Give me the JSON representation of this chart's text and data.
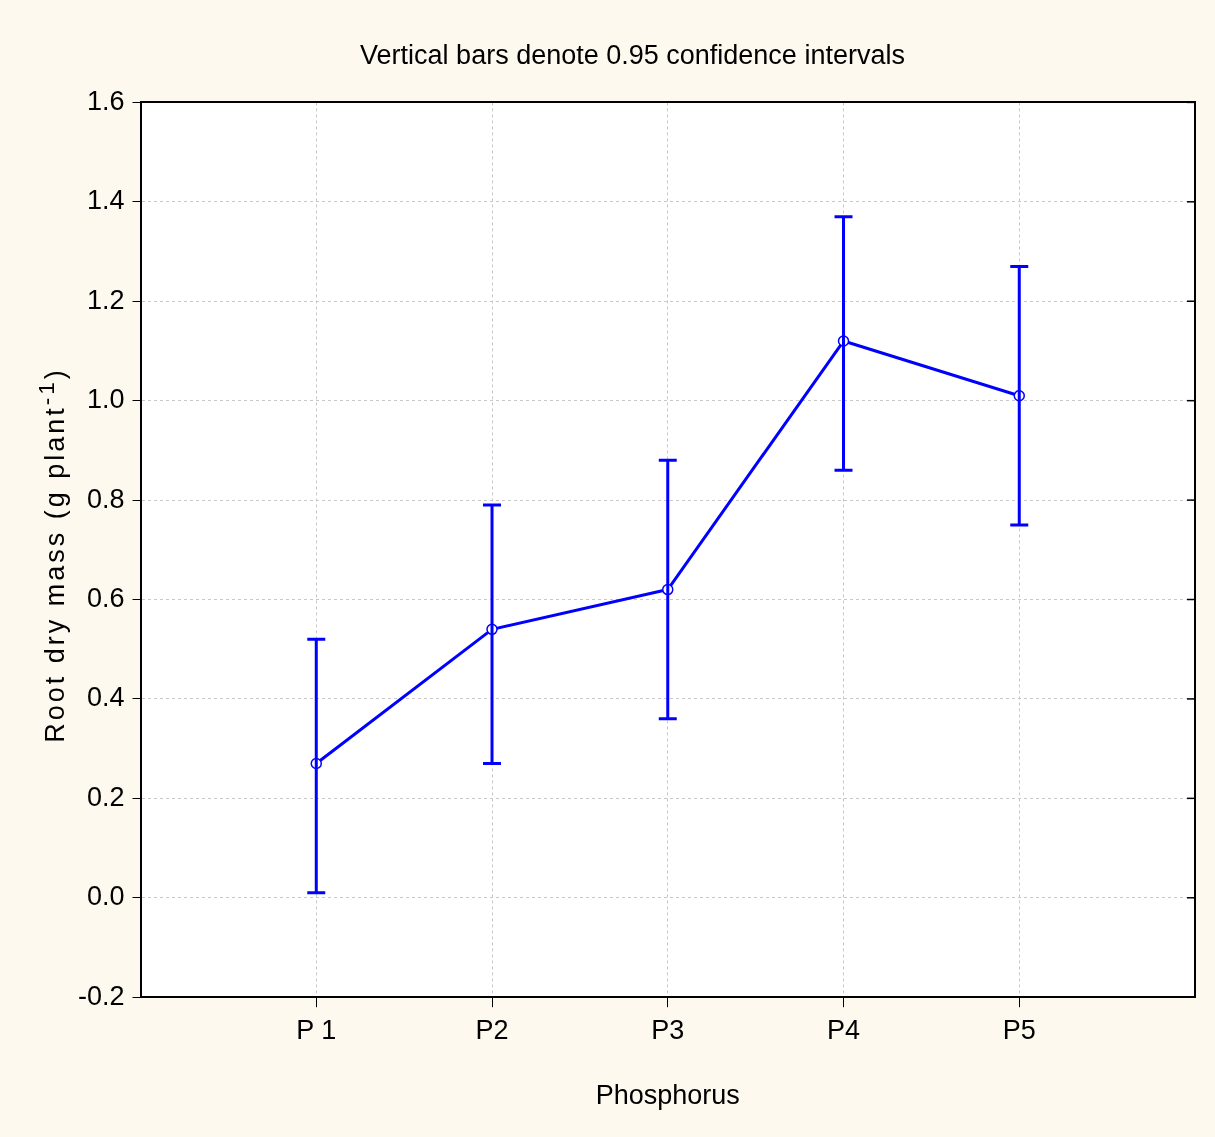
{
  "chart_data": {
    "type": "line",
    "title": "Vertical bars denote 0.95 confidence intervals",
    "xlabel": "Phosphorus",
    "ylabel": "Root dry mass (g plant$^{-1}$)",
    "categories": [
      "P 1",
      "P2",
      "P3",
      "P4",
      "P5"
    ],
    "series": [
      {
        "color": "#0000ff",
        "values": [
          0.27,
          0.54,
          0.62,
          1.12,
          1.01
        ],
        "errors": [
          [
            0.01,
            0.52
          ],
          [
            0.27,
            0.79
          ],
          [
            0.36,
            0.88
          ],
          [
            0.86,
            1.37
          ],
          [
            0.75,
            1.27
          ]
        ]
      }
    ],
    "ylim": [
      -0.2,
      1.6
    ],
    "yticks": [
      {
        "value": -0.2,
        "label": "-0.2"
      },
      {
        "value": 0,
        "label": "0.0"
      },
      {
        "value": 0.2,
        "label": "0.2"
      },
      {
        "value": 0.4,
        "label": "0.4"
      },
      {
        "value": 0.6,
        "label": "0.6"
      },
      {
        "value": 0.8,
        "label": "0.8"
      },
      {
        "value": 1,
        "label": "1.0"
      },
      {
        "value": 1.2,
        "label": "1.2"
      },
      {
        "value": 1.4,
        "label": "1.4"
      },
      {
        "value": 1.6,
        "label": "1.6"
      }
    ],
    "grid": true,
    "marker": "circle",
    "line_style": "solid",
    "legend": false
  }
}
